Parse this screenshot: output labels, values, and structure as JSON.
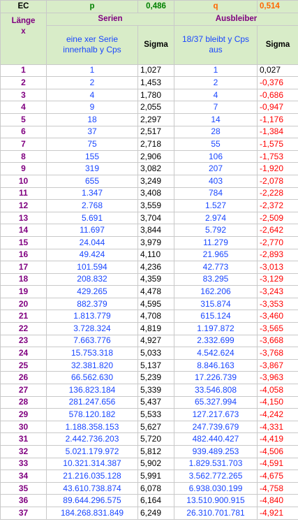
{
  "header": {
    "ec": "EC",
    "p_label": "p",
    "p_value": "0,486",
    "q_label": "q",
    "q_value": "0,514",
    "serien": "Serien",
    "ausbleiber": "Ausbleiber",
    "laenge": "Länge",
    "x": "x",
    "serien_desc": "eine xer Serie innerhalb y Cps",
    "sigma1": "Sigma",
    "ausbleiber_desc": "18/37 bleibt y Cps aus",
    "sigma2": "Sigma"
  },
  "rows": [
    {
      "len": "1",
      "ser": "1",
      "s1": "1,027",
      "aus": "1",
      "s2": "0,027"
    },
    {
      "len": "2",
      "ser": "2",
      "s1": "1,453",
      "aus": "2",
      "s2": "-0,376"
    },
    {
      "len": "3",
      "ser": "4",
      "s1": "1,780",
      "aus": "4",
      "s2": "-0,686"
    },
    {
      "len": "4",
      "ser": "9",
      "s1": "2,055",
      "aus": "7",
      "s2": "-0,947"
    },
    {
      "len": "5",
      "ser": "18",
      "s1": "2,297",
      "aus": "14",
      "s2": "-1,176"
    },
    {
      "len": "6",
      "ser": "37",
      "s1": "2,517",
      "aus": "28",
      "s2": "-1,384"
    },
    {
      "len": "7",
      "ser": "75",
      "s1": "2,718",
      "aus": "55",
      "s2": "-1,575"
    },
    {
      "len": "8",
      "ser": "155",
      "s1": "2,906",
      "aus": "106",
      "s2": "-1,753"
    },
    {
      "len": "9",
      "ser": "319",
      "s1": "3,082",
      "aus": "207",
      "s2": "-1,920"
    },
    {
      "len": "10",
      "ser": "655",
      "s1": "3,249",
      "aus": "403",
      "s2": "-2,078"
    },
    {
      "len": "11",
      "ser": "1.347",
      "s1": "3,408",
      "aus": "784",
      "s2": "-2,228"
    },
    {
      "len": "12",
      "ser": "2.768",
      "s1": "3,559",
      "aus": "1.527",
      "s2": "-2,372"
    },
    {
      "len": "13",
      "ser": "5.691",
      "s1": "3,704",
      "aus": "2.974",
      "s2": "-2,509"
    },
    {
      "len": "14",
      "ser": "11.697",
      "s1": "3,844",
      "aus": "5.792",
      "s2": "-2,642"
    },
    {
      "len": "15",
      "ser": "24.044",
      "s1": "3,979",
      "aus": "11.279",
      "s2": "-2,770"
    },
    {
      "len": "16",
      "ser": "49.424",
      "s1": "4,110",
      "aus": "21.965",
      "s2": "-2,893"
    },
    {
      "len": "17",
      "ser": "101.594",
      "s1": "4,236",
      "aus": "42.773",
      "s2": "-3,013"
    },
    {
      "len": "18",
      "ser": "208.832",
      "s1": "4,359",
      "aus": "83.295",
      "s2": "-3,129"
    },
    {
      "len": "19",
      "ser": "429.265",
      "s1": "4,478",
      "aus": "162.206",
      "s2": "-3,243"
    },
    {
      "len": "20",
      "ser": "882.379",
      "s1": "4,595",
      "aus": "315.874",
      "s2": "-3,353"
    },
    {
      "len": "21",
      "ser": "1.813.779",
      "s1": "4,708",
      "aus": "615.124",
      "s2": "-3,460"
    },
    {
      "len": "22",
      "ser": "3.728.324",
      "s1": "4,819",
      "aus": "1.197.872",
      "s2": "-3,565"
    },
    {
      "len": "23",
      "ser": "7.663.776",
      "s1": "4,927",
      "aus": "2.332.699",
      "s2": "-3,668"
    },
    {
      "len": "24",
      "ser": "15.753.318",
      "s1": "5,033",
      "aus": "4.542.624",
      "s2": "-3,768"
    },
    {
      "len": "25",
      "ser": "32.381.820",
      "s1": "5,137",
      "aus": "8.846.163",
      "s2": "-3,867"
    },
    {
      "len": "26",
      "ser": "66.562.630",
      "s1": "5,239",
      "aus": "17.226.739",
      "s2": "-3,963"
    },
    {
      "len": "27",
      "ser": "136.823.184",
      "s1": "5,339",
      "aus": "33.546.808",
      "s2": "-4,058"
    },
    {
      "len": "28",
      "ser": "281.247.656",
      "s1": "5,437",
      "aus": "65.327.994",
      "s2": "-4,150"
    },
    {
      "len": "29",
      "ser": "578.120.182",
      "s1": "5,533",
      "aus": "127.217.673",
      "s2": "-4,242"
    },
    {
      "len": "30",
      "ser": "1.188.358.153",
      "s1": "5,627",
      "aus": "247.739.679",
      "s2": "-4,331"
    },
    {
      "len": "31",
      "ser": "2.442.736.203",
      "s1": "5,720",
      "aus": "482.440.427",
      "s2": "-4,419"
    },
    {
      "len": "32",
      "ser": "5.021.179.972",
      "s1": "5,812",
      "aus": "939.489.253",
      "s2": "-4,506"
    },
    {
      "len": "33",
      "ser": "10.321.314.387",
      "s1": "5,902",
      "aus": "1.829.531.703",
      "s2": "-4,591"
    },
    {
      "len": "34",
      "ser": "21.216.035.128",
      "s1": "5,991",
      "aus": "3.562.772.265",
      "s2": "-4,675"
    },
    {
      "len": "35",
      "ser": "43.610.738.874",
      "s1": "6,078",
      "aus": "6.938.030.199",
      "s2": "-4,758"
    },
    {
      "len": "36",
      "ser": "89.644.296.575",
      "s1": "6,164",
      "aus": "13.510.900.915",
      "s2": "-4,840"
    },
    {
      "len": "37",
      "ser": "184.268.831.849",
      "s1": "6,249",
      "aus": "26.310.701.781",
      "s2": "-4,921"
    }
  ]
}
